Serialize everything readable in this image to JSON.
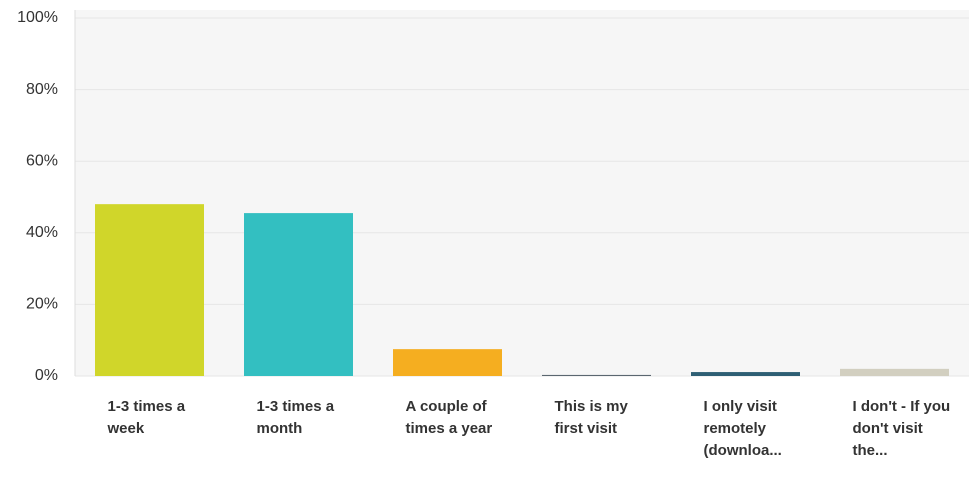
{
  "chart_data": {
    "type": "bar",
    "categories": [
      "1-3 times a week",
      "1-3 times a month",
      "A couple of times a year",
      "This is my first visit",
      "I only visit remotely (downloa...",
      "I don't - If you don't visit the..."
    ],
    "values": [
      48,
      45.5,
      7.5,
      0.3,
      1.1,
      2
    ],
    "colors": [
      "#d0d62a",
      "#33bfc1",
      "#f5ae20",
      "#5b6770",
      "#2e5f74",
      "#d2cfc0"
    ],
    "ylim": [
      0,
      100
    ],
    "yticks": [
      {
        "value": 0,
        "label": "0%"
      },
      {
        "value": 20,
        "label": "20%"
      },
      {
        "value": 40,
        "label": "40%"
      },
      {
        "value": 60,
        "label": "60%"
      },
      {
        "value": 80,
        "label": "80%"
      },
      {
        "value": 100,
        "label": "100%"
      }
    ],
    "grid": true
  }
}
